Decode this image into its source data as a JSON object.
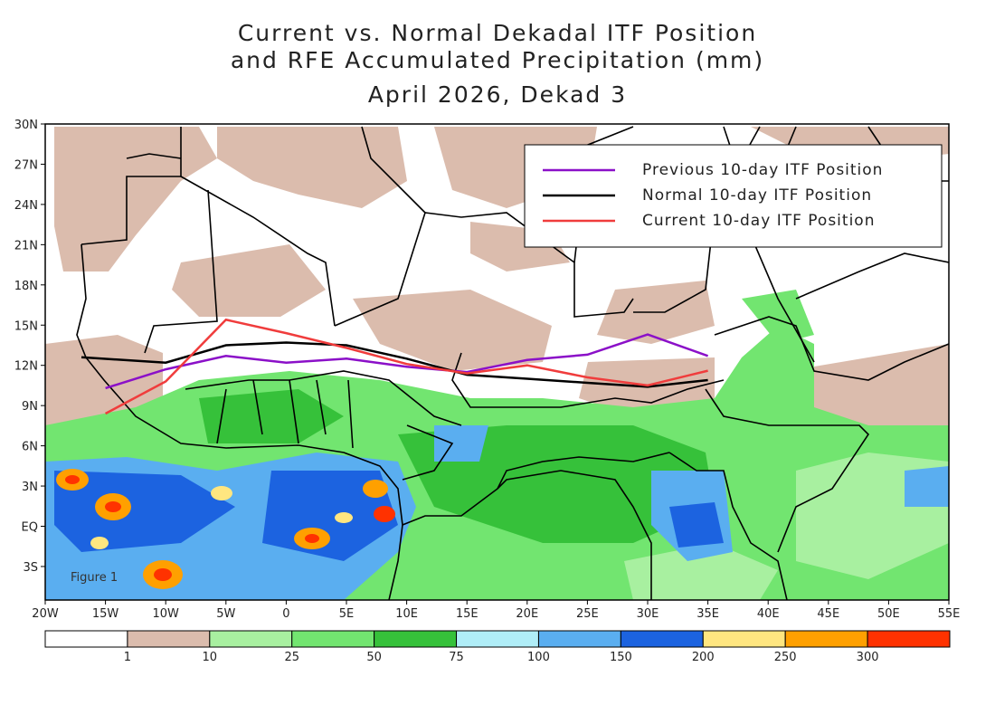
{
  "title": {
    "line1": "Current vs. Normal Dekadal ITF Position",
    "line2": "and RFE Accumulated Precipitation (mm)",
    "line3": "April 2026, Dekad 3"
  },
  "figure_label": "Figure 1",
  "axes": {
    "lon_range": [
      -20,
      55
    ],
    "lat_range": [
      -5.5,
      30
    ],
    "lon_ticks": [
      "20W",
      "15W",
      "10W",
      "5W",
      "0",
      "5E",
      "10E",
      "15E",
      "20E",
      "25E",
      "30E",
      "35E",
      "40E",
      "45E",
      "50E",
      "55E"
    ],
    "lat_ticks": [
      "30N",
      "27N",
      "24N",
      "21N",
      "18N",
      "15N",
      "12N",
      "9N",
      "6N",
      "3N",
      "EQ",
      "3S"
    ]
  },
  "legend": {
    "items": [
      {
        "label": "Previous 10-day ITF Position",
        "color": "#8b10c8"
      },
      {
        "label": "Normal 10-day ITF Position",
        "color": "#000000"
      },
      {
        "label": "Current 10-day ITF Position",
        "color": "#f03c3c"
      }
    ]
  },
  "colorbar": {
    "colors": [
      "#ffffff",
      "#dbbcad",
      "#a8f0a0",
      "#72e570",
      "#36c13a",
      "#b0eef8",
      "#5aaef0",
      "#1c63e0",
      "#ffe680",
      "#ffa000",
      "#ff3200"
    ],
    "labels": [
      "1",
      "10",
      "25",
      "50",
      "75",
      "100",
      "150",
      "200",
      "250",
      "300"
    ]
  },
  "chart_data": {
    "type": "line",
    "xlabel": "",
    "ylabel": "",
    "series": [
      {
        "name": "Previous 10-day ITF Position",
        "color": "#8b10c8",
        "points": [
          [
            -15,
            10.3
          ],
          [
            -10,
            11.7
          ],
          [
            -5,
            12.7
          ],
          [
            0,
            12.2
          ],
          [
            5,
            12.5
          ],
          [
            10,
            11.9
          ],
          [
            15,
            11.5
          ],
          [
            20,
            12.4
          ],
          [
            25,
            12.8
          ],
          [
            30,
            14.3
          ],
          [
            35,
            12.7
          ]
        ]
      },
      {
        "name": "Normal 10-day ITF Position",
        "color": "#000000",
        "points": [
          [
            -17,
            12.6
          ],
          [
            -10,
            12.2
          ],
          [
            -5,
            13.5
          ],
          [
            0,
            13.7
          ],
          [
            5,
            13.5
          ],
          [
            10,
            12.5
          ],
          [
            15,
            11.3
          ],
          [
            20,
            11.0
          ],
          [
            25,
            10.7
          ],
          [
            30,
            10.4
          ],
          [
            35,
            10.9
          ]
        ]
      },
      {
        "name": "Current 10-day ITF Position",
        "color": "#f03c3c",
        "points": [
          [
            -15,
            8.4
          ],
          [
            -10,
            10.8
          ],
          [
            -5,
            15.4
          ],
          [
            0,
            14.4
          ],
          [
            5,
            13.3
          ],
          [
            10,
            12.1
          ],
          [
            15,
            11.4
          ],
          [
            20,
            12.0
          ],
          [
            25,
            11.1
          ],
          [
            30,
            10.5
          ],
          [
            35,
            11.6
          ]
        ]
      }
    ]
  }
}
